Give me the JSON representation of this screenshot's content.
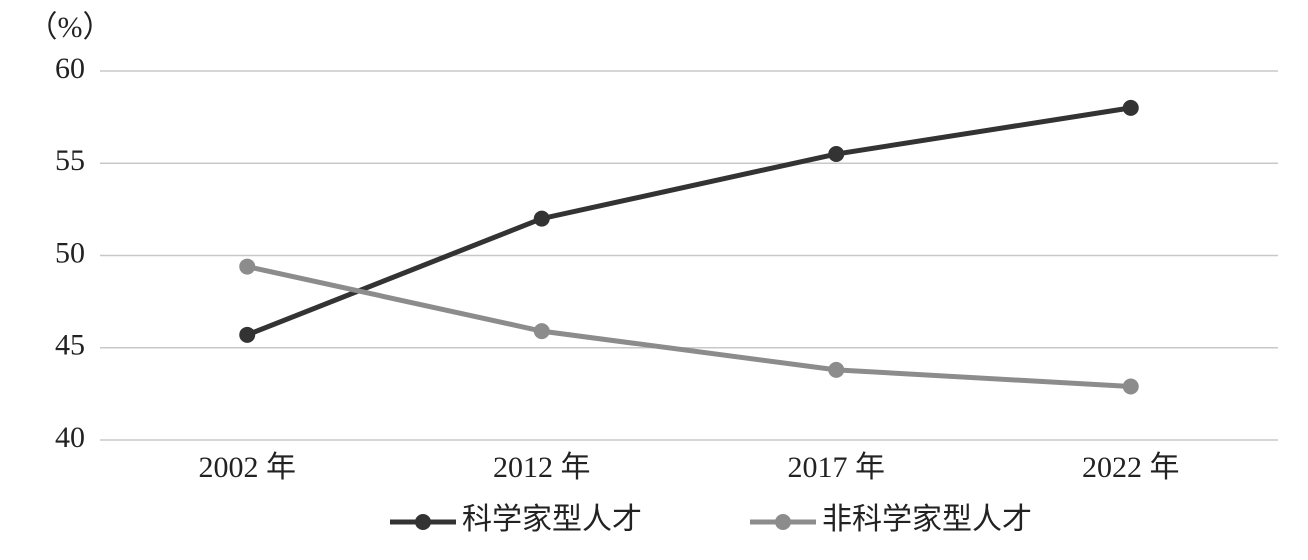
{
  "chart_data": {
    "type": "line",
    "y_label": "（%）",
    "categories": [
      "2002 年",
      "2012 年",
      "2017 年",
      "2022 年"
    ],
    "series": [
      {
        "name": "科学家型人才",
        "color": "#333333",
        "values": [
          45.7,
          52,
          55.5,
          58
        ]
      },
      {
        "name": "非科学家型人才",
        "color": "#8c8c8c",
        "values": [
          49.4,
          45.9,
          43.8,
          42.9
        ]
      }
    ],
    "ylim": [
      40,
      60
    ],
    "yticks": [
      40,
      45,
      50,
      55,
      60
    ],
    "grid": true
  }
}
